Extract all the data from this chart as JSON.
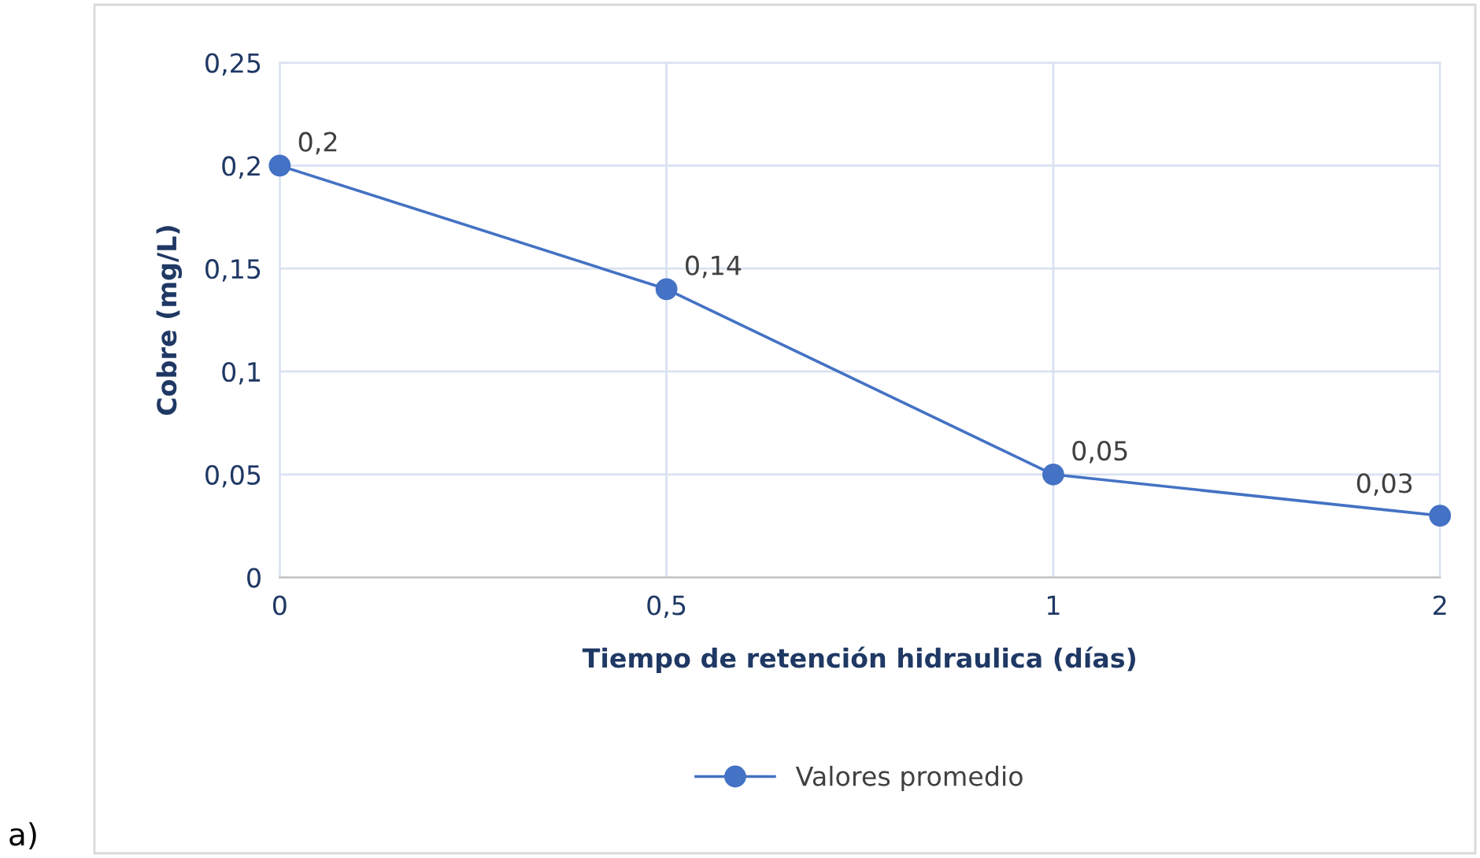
{
  "chart_data": {
    "type": "line",
    "xlabel": "Tiempo de retención hidraulica (días)",
    "ylabel": "Cobre (mg/L)",
    "categories": [
      "0",
      "0,5",
      "1",
      "2"
    ],
    "series": [
      {
        "name": "Valores promedio",
        "color": "#4472c4",
        "values": [
          0.2,
          0.14,
          0.05,
          0.03
        ],
        "value_labels": [
          "0,2",
          "0,14",
          "0,05",
          "0,03"
        ]
      }
    ],
    "ylim": [
      0,
      0.25
    ],
    "yticks": [
      0,
      {
        "value": 0.05,
        "label": "0,05"
      },
      {
        "value": 0.1,
        "label": "0,1"
      },
      {
        "value": 0.15,
        "label": "0,15"
      },
      {
        "value": 0.2,
        "label": "0,2"
      },
      {
        "value": 0.25,
        "label": "0,25"
      }
    ],
    "grid": true,
    "legend": "bottom",
    "marker": "circle",
    "line_style": "solid",
    "annotations": [
      "a)"
    ]
  }
}
